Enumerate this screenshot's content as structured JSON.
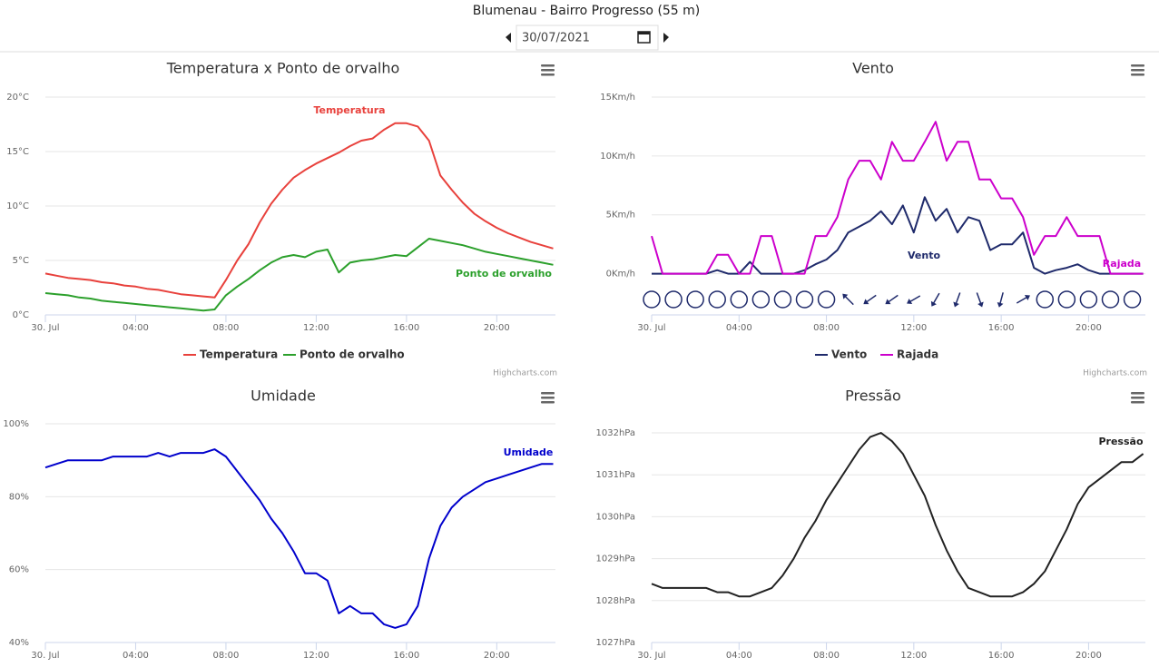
{
  "header": {
    "title": "Blumenau - Bairro Progresso (55 m)",
    "date": "30/07/2021"
  },
  "chart_data": [
    {
      "type": "line",
      "title": "Temperatura x Ponto de orvalho",
      "credits": "Highcharts.com",
      "legend": true,
      "x": [
        0,
        0.5,
        1,
        1.5,
        2,
        2.5,
        3,
        3.5,
        4,
        4.5,
        5,
        5.5,
        6,
        6.5,
        7,
        7.5,
        8,
        8.5,
        9,
        9.5,
        10,
        10.5,
        11,
        11.5,
        12,
        12.5,
        13,
        13.5,
        14,
        14.5,
        15,
        15.5,
        16,
        16.5,
        17,
        17.5,
        18,
        18.5,
        19,
        19.5,
        20,
        20.5,
        21,
        21.5,
        22,
        22.5
      ],
      "xlim": [
        0,
        22.6
      ],
      "xticks": [
        {
          "value": 0,
          "label": "30. Jul"
        },
        {
          "value": 4,
          "label": "04:00"
        },
        {
          "value": 8,
          "label": "08:00"
        },
        {
          "value": 12,
          "label": "12:00"
        },
        {
          "value": 16,
          "label": "16:00"
        },
        {
          "value": 20,
          "label": "20:00"
        }
      ],
      "ylim": [
        0,
        20
      ],
      "yticks": [
        {
          "value": 0,
          "label": "0°C"
        },
        {
          "value": 5,
          "label": "5°C"
        },
        {
          "value": 10,
          "label": "10°C"
        },
        {
          "value": 15,
          "label": "15°C"
        },
        {
          "value": 20,
          "label": "20°C"
        }
      ],
      "series": [
        {
          "name": "Temperatura",
          "color": "#e8413c",
          "values": [
            3.8,
            3.6,
            3.4,
            3.3,
            3.2,
            3.0,
            2.9,
            2.7,
            2.6,
            2.4,
            2.3,
            2.1,
            1.9,
            1.8,
            1.7,
            1.6,
            3.2,
            5.0,
            6.5,
            8.5,
            10.2,
            11.5,
            12.6,
            13.3,
            13.9,
            14.4,
            14.9,
            15.5,
            16.0,
            16.2,
            17.0,
            17.6,
            17.6,
            17.3,
            16.0,
            12.8,
            11.5,
            10.3,
            9.3,
            8.6,
            8.0,
            7.5,
            7.1,
            6.7,
            6.4,
            6.1
          ]
        },
        {
          "name": "Ponto de orvalho",
          "color": "#2ca02c",
          "values": [
            2.0,
            1.9,
            1.8,
            1.6,
            1.5,
            1.3,
            1.2,
            1.1,
            1.0,
            0.9,
            0.8,
            0.7,
            0.6,
            0.5,
            0.4,
            0.5,
            1.8,
            2.6,
            3.3,
            4.1,
            4.8,
            5.3,
            5.5,
            5.3,
            5.8,
            6.0,
            3.9,
            4.8,
            5.0,
            5.1,
            5.3,
            5.5,
            5.4,
            6.2,
            7.0,
            6.8,
            6.6,
            6.4,
            6.1,
            5.8,
            5.6,
            5.4,
            5.2,
            5.0,
            4.8,
            4.6
          ]
        }
      ]
    },
    {
      "type": "line",
      "title": "Vento",
      "credits": "Highcharts.com",
      "legend": true,
      "x": [
        0,
        0.5,
        1,
        1.5,
        2,
        2.5,
        3,
        3.5,
        4,
        4.5,
        5,
        5.5,
        6,
        6.5,
        7,
        7.5,
        8,
        8.5,
        9,
        9.5,
        10,
        10.5,
        11,
        11.5,
        12,
        12.5,
        13,
        13.5,
        14,
        14.5,
        15,
        15.5,
        16,
        16.5,
        17,
        17.5,
        18,
        18.5,
        19,
        19.5,
        20,
        20.5,
        21,
        21.5,
        22,
        22.5
      ],
      "xlim": [
        0,
        22.6
      ],
      "xticks": [
        {
          "value": 0,
          "label": "30. Jul"
        },
        {
          "value": 4,
          "label": "04:00"
        },
        {
          "value": 8,
          "label": "08:00"
        },
        {
          "value": 12,
          "label": "12:00"
        },
        {
          "value": 16,
          "label": "16:00"
        },
        {
          "value": 20,
          "label": "20:00"
        }
      ],
      "ylim": [
        -3.5,
        15
      ],
      "yticks": [
        {
          "value": 0,
          "label": "0Km/h"
        },
        {
          "value": 5,
          "label": "5Km/h"
        },
        {
          "value": 10,
          "label": "10Km/h"
        },
        {
          "value": 15,
          "label": "15Km/h"
        }
      ],
      "series": [
        {
          "name": "Vento",
          "color": "#1f2a6b",
          "values": [
            0,
            0,
            0,
            0,
            0,
            0,
            0.3,
            0,
            0,
            1.0,
            0,
            0,
            0,
            0,
            0.3,
            0.8,
            1.2,
            2.0,
            3.5,
            4.0,
            4.5,
            5.3,
            4.2,
            5.8,
            3.5,
            6.5,
            4.5,
            5.5,
            3.5,
            4.8,
            4.5,
            2.0,
            2.5,
            2.5,
            3.5,
            0.5,
            0,
            0.3,
            0.5,
            0.8,
            0.3,
            0,
            0,
            0,
            0,
            0
          ]
        },
        {
          "name": "Rajada",
          "color": "#cc00cc",
          "values": [
            3.2,
            0,
            0,
            0,
            0,
            0,
            1.6,
            1.6,
            0,
            0,
            3.2,
            3.2,
            0,
            0,
            0,
            3.2,
            3.2,
            4.8,
            8.0,
            9.6,
            9.6,
            8.0,
            11.2,
            9.6,
            9.6,
            11.2,
            12.9,
            9.6,
            11.2,
            11.2,
            8.0,
            8.0,
            6.4,
            6.4,
            4.8,
            1.6,
            3.2,
            3.2,
            4.8,
            3.2,
            3.2,
            3.2,
            0,
            0,
            0,
            0
          ]
        }
      ],
      "direction_x": [
        0,
        1,
        2,
        3,
        4,
        5,
        6,
        7,
        8,
        9,
        10,
        11,
        12,
        13,
        14,
        15,
        16,
        17,
        18,
        19,
        20,
        21,
        22
      ],
      "directions": [
        null,
        null,
        null,
        null,
        null,
        null,
        null,
        null,
        null,
        -45,
        235,
        235,
        240,
        210,
        200,
        160,
        195,
        60,
        null,
        null,
        null,
        null,
        null
      ]
    },
    {
      "type": "line",
      "title": "Umidade",
      "legend": false,
      "x": [
        0,
        0.5,
        1,
        1.5,
        2,
        2.5,
        3,
        3.5,
        4,
        4.5,
        5,
        5.5,
        6,
        6.5,
        7,
        7.5,
        8,
        8.5,
        9,
        9.5,
        10,
        10.5,
        11,
        11.5,
        12,
        12.5,
        13,
        13.5,
        14,
        14.5,
        15,
        15.5,
        16,
        16.5,
        17,
        17.5,
        18,
        18.5,
        19,
        19.5,
        20,
        20.5,
        21,
        21.5,
        22,
        22.5
      ],
      "xlim": [
        0,
        22.6
      ],
      "xticks": [
        {
          "value": 0,
          "label": "30. Jul"
        },
        {
          "value": 4,
          "label": "04:00"
        },
        {
          "value": 8,
          "label": "08:00"
        },
        {
          "value": 12,
          "label": "12:00"
        },
        {
          "value": 16,
          "label": "16:00"
        },
        {
          "value": 20,
          "label": "20:00"
        }
      ],
      "ylim": [
        40,
        100
      ],
      "yticks": [
        {
          "value": 40,
          "label": "40%"
        },
        {
          "value": 60,
          "label": "60%"
        },
        {
          "value": 80,
          "label": "80%"
        },
        {
          "value": 100,
          "label": "100%"
        }
      ],
      "series": [
        {
          "name": "Umidade",
          "color": "#0000cc",
          "values": [
            88,
            89,
            90,
            90,
            90,
            90,
            91,
            91,
            91,
            91,
            92,
            91,
            92,
            92,
            92,
            93,
            91,
            87,
            83,
            79,
            74,
            70,
            65,
            59,
            59,
            57,
            48,
            50,
            48,
            48,
            45,
            44,
            45,
            50,
            63,
            72,
            77,
            80,
            82,
            84,
            85,
            86,
            87,
            88,
            89,
            89
          ]
        }
      ]
    },
    {
      "type": "line",
      "title": "Pressão",
      "legend": false,
      "x": [
        0,
        0.5,
        1,
        1.5,
        2,
        2.5,
        3,
        3.5,
        4,
        4.5,
        5,
        5.5,
        6,
        6.5,
        7,
        7.5,
        8,
        8.5,
        9,
        9.5,
        10,
        10.5,
        11,
        11.5,
        12,
        12.5,
        13,
        13.5,
        14,
        14.5,
        15,
        15.5,
        16,
        16.5,
        17,
        17.5,
        18,
        18.5,
        19,
        19.5,
        20,
        20.5,
        21,
        21.5,
        22,
        22.5
      ],
      "xlim": [
        0,
        22.6
      ],
      "xticks": [
        {
          "value": 0,
          "label": "30. Jul"
        },
        {
          "value": 4,
          "label": "04:00"
        },
        {
          "value": 8,
          "label": "08:00"
        },
        {
          "value": 12,
          "label": "12:00"
        },
        {
          "value": 16,
          "label": "16:00"
        },
        {
          "value": 20,
          "label": "20:00"
        }
      ],
      "ylim": [
        1027,
        1032
      ],
      "yticks": [
        {
          "value": 1027,
          "label": "1027hPa"
        },
        {
          "value": 1028,
          "label": "1028hPa"
        },
        {
          "value": 1029,
          "label": "1029hPa"
        },
        {
          "value": 1030,
          "label": "1030hPa"
        },
        {
          "value": 1031,
          "label": "1031hPa"
        },
        {
          "value": 1032,
          "label": "1032hPa"
        }
      ],
      "series": [
        {
          "name": "Pressão",
          "color": "#222222",
          "values": [
            1028.4,
            1028.3,
            1028.3,
            1028.3,
            1028.3,
            1028.3,
            1028.2,
            1028.2,
            1028.1,
            1028.1,
            1028.2,
            1028.3,
            1028.6,
            1029.0,
            1029.5,
            1029.9,
            1030.4,
            1030.8,
            1031.2,
            1031.6,
            1031.9,
            1032.0,
            1031.8,
            1031.5,
            1031.0,
            1030.5,
            1029.8,
            1029.2,
            1028.7,
            1028.3,
            1028.2,
            1028.1,
            1028.1,
            1028.1,
            1028.2,
            1028.4,
            1028.7,
            1029.2,
            1029.7,
            1030.3,
            1030.7,
            1030.9,
            1031.1,
            1031.3,
            1031.3,
            1031.5
          ]
        }
      ]
    }
  ]
}
